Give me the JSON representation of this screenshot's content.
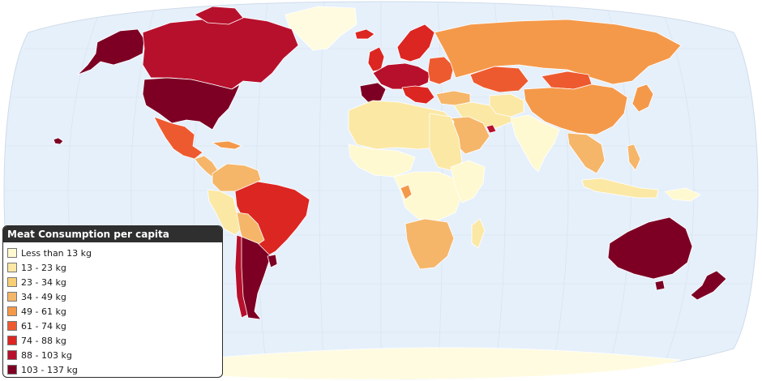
{
  "map": {
    "projection": "Robinson",
    "background_ocean": "#e6f0fb",
    "no_data_color": "#fffbe0",
    "graticule": true
  },
  "legend": {
    "title": "Meat Consumption per capita",
    "placement": "bottom-left",
    "items": [
      {
        "label": "Less than 13 kg",
        "color": "#fff9d1"
      },
      {
        "label": "13 - 23 kg",
        "color": "#fbe8a4"
      },
      {
        "label": "23 - 34 kg",
        "color": "#f8cf74"
      },
      {
        "label": "34 - 49 kg",
        "color": "#f5b66a"
      },
      {
        "label": "49 - 61 kg",
        "color": "#f4994a"
      },
      {
        "label": "61 - 74 kg",
        "color": "#ee5a2f"
      },
      {
        "label": "74 - 88 kg",
        "color": "#dc2622"
      },
      {
        "label": "88 - 103 kg",
        "color": "#b7102c"
      },
      {
        "label": "103 - 137 kg",
        "color": "#7d0024"
      }
    ]
  }
}
